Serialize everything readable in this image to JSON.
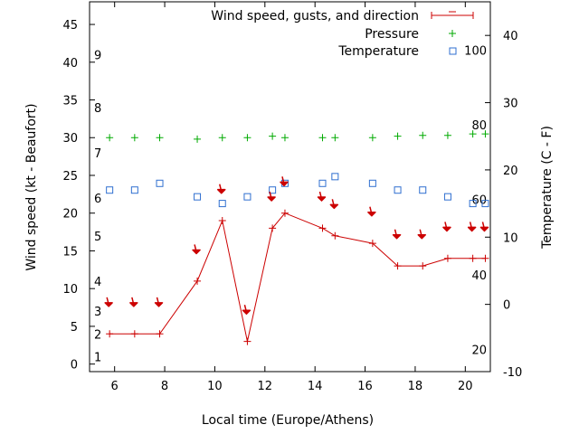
{
  "chart_data": {
    "type": "line",
    "xlabel": "Local time (Europe/Athens)",
    "ylabel_left": "Wind speed (kt - Beaufort)",
    "ylabel_right": "Temperature (C - F)",
    "xlim": [
      5,
      21
    ],
    "ylim_left": [
      -1,
      48
    ],
    "ylim_right": [
      -10,
      45
    ],
    "x_ticks": [
      6,
      8,
      10,
      12,
      14,
      16,
      18,
      20
    ],
    "y_ticks_left": [
      0,
      5,
      10,
      15,
      20,
      25,
      30,
      35,
      40,
      45
    ],
    "y_ticks_right": [
      -10,
      0,
      10,
      20,
      30,
      40
    ],
    "beaufort_labels": [
      {
        "text": "1",
        "kt": 1
      },
      {
        "text": "2",
        "kt": 4
      },
      {
        "text": "3",
        "kt": 7
      },
      {
        "text": "4",
        "kt": 11
      },
      {
        "text": "5",
        "kt": 17
      },
      {
        "text": "6",
        "kt": 22
      },
      {
        "text": "7",
        "kt": 28
      },
      {
        "text": "8",
        "kt": 34
      },
      {
        "text": "9",
        "kt": 41
      }
    ],
    "fahrenheit_labels": [
      {
        "text": "20",
        "c": -6.7
      },
      {
        "text": "40",
        "c": 4.4
      },
      {
        "text": "60",
        "c": 15.6
      },
      {
        "text": "80",
        "c": 26.7
      },
      {
        "text": "100",
        "c": 37.8
      }
    ],
    "legend": {
      "position": "top-right",
      "entries": [
        {
          "label": "Wind speed, gusts, and direction",
          "symbol": "line-plus"
        },
        {
          "label": "Pressure",
          "symbol": "plus"
        },
        {
          "label": "Temperature",
          "symbol": "square"
        }
      ]
    },
    "series": [
      {
        "name": "Wind speed, gusts, and direction",
        "axis": "left",
        "color": "#cc0000",
        "x": [
          5.8,
          6.8,
          7.8,
          9.3,
          10.3,
          11.3,
          12.3,
          12.8,
          14.3,
          14.8,
          16.3,
          17.3,
          18.3,
          19.3,
          20.3,
          20.8
        ],
        "y": [
          4,
          4,
          4,
          11,
          19,
          3,
          18,
          20,
          18,
          17,
          16,
          13,
          13,
          14,
          14,
          14
        ]
      },
      {
        "name": "Pressure",
        "axis": "left",
        "color": "#00aa00",
        "x": [
          5.8,
          6.8,
          7.8,
          9.3,
          10.3,
          11.3,
          12.3,
          12.8,
          14.3,
          14.8,
          16.3,
          17.3,
          18.3,
          19.3,
          20.3,
          20.8
        ],
        "y": [
          30,
          30,
          30,
          29.8,
          30,
          30,
          30.2,
          30,
          30,
          30,
          30,
          30.2,
          30.3,
          30.3,
          30.5,
          30.5
        ]
      },
      {
        "name": "Temperature",
        "axis": "right",
        "color": "#2f6fd0",
        "x": [
          5.8,
          6.8,
          7.8,
          9.3,
          10.3,
          11.3,
          12.3,
          12.8,
          14.3,
          14.8,
          16.3,
          17.3,
          18.3,
          19.3,
          20.3,
          20.8
        ],
        "y": [
          17,
          17,
          18,
          16,
          15,
          16,
          17,
          18,
          18,
          19,
          18,
          17,
          17,
          16,
          15,
          15
        ]
      }
    ],
    "direction_arrows": {
      "color": "#cc0000",
      "x": [
        5.8,
        6.8,
        7.8,
        9.3,
        10.3,
        11.3,
        12.3,
        12.8,
        14.3,
        14.8,
        16.3,
        17.3,
        18.3,
        19.3,
        20.3,
        20.8
      ],
      "y": [
        8,
        8,
        8,
        15,
        23,
        7,
        22,
        24,
        22,
        21,
        20,
        17,
        17,
        18,
        18,
        18
      ]
    }
  }
}
